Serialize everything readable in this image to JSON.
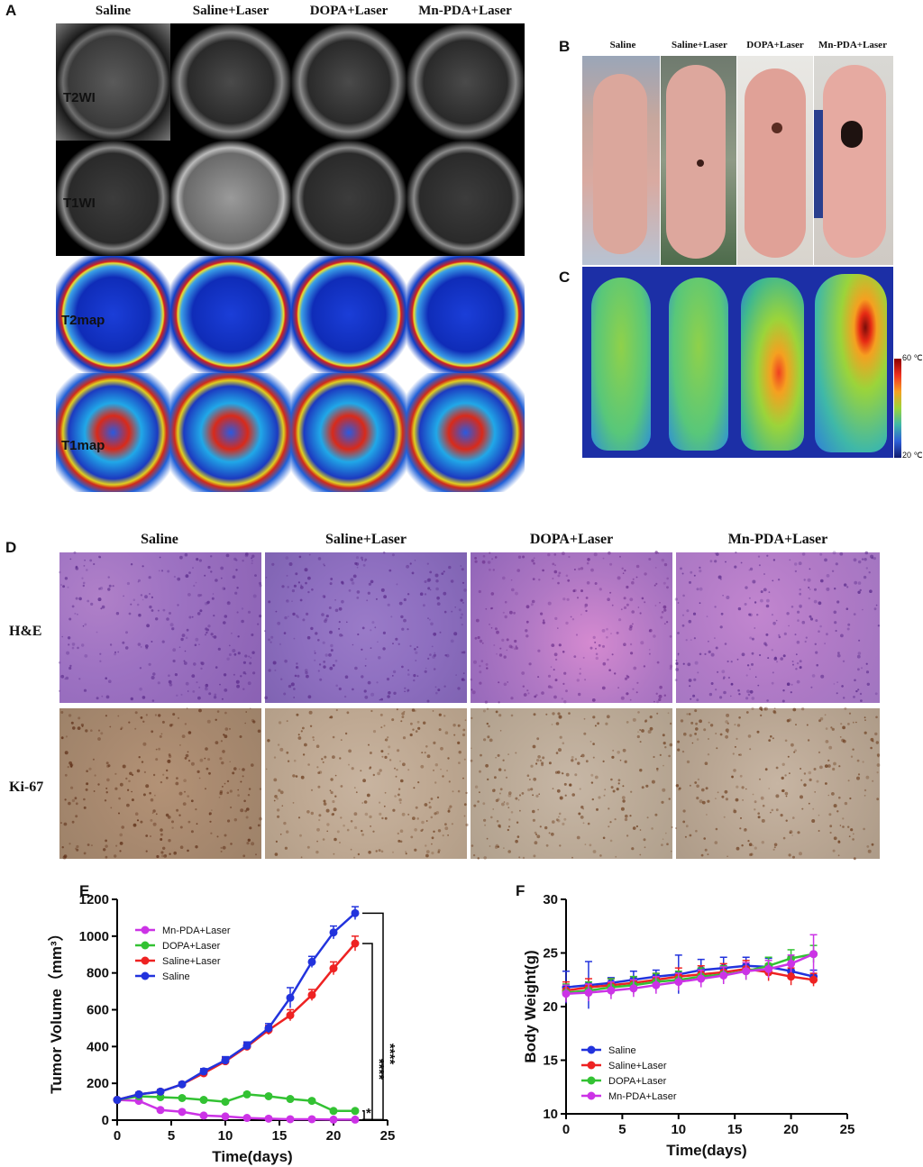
{
  "panel_a": {
    "letter": "A",
    "columns": [
      "Saline",
      "Saline+Laser",
      "DOPA+Laser",
      "Mn-PDA+Laser"
    ],
    "rows": [
      "T2WI",
      "T1WI",
      "T2map",
      "T1map"
    ]
  },
  "panel_b": {
    "letter": "B",
    "columns": [
      "Saline",
      "Saline+Laser",
      "DOPA+Laser",
      "Mn-PDA+Laser"
    ]
  },
  "panel_c": {
    "letter": "C",
    "colorbar_max": "60 ℃",
    "colorbar_min": "20 ℃"
  },
  "panel_d": {
    "letter": "D",
    "columns": [
      "Saline",
      "Saline+Laser",
      "DOPA+Laser",
      "Mn-PDA+Laser"
    ],
    "rows": [
      "H&E",
      "Ki-67"
    ]
  },
  "chart_data": [
    {
      "panel": "E",
      "type": "line",
      "xlabel": "Time(days)",
      "ylabel": "Tumor Volume（mm³）",
      "xlim": [
        0,
        25
      ],
      "ylim": [
        0,
        1200
      ],
      "xticks": [
        0,
        5,
        10,
        15,
        20,
        25
      ],
      "yticks": [
        0,
        200,
        400,
        600,
        800,
        1000,
        1200
      ],
      "legend_position": "top-left",
      "significance": [
        "****",
        "****",
        "*"
      ],
      "series": [
        {
          "name": "Mn-PDA+Laser",
          "color": "#cc33e6",
          "x": [
            0,
            2,
            4,
            6,
            8,
            10,
            12,
            14,
            16,
            18,
            20,
            22
          ],
          "y": [
            110,
            105,
            55,
            45,
            25,
            20,
            12,
            8,
            5,
            5,
            3,
            3
          ],
          "err": [
            8,
            8,
            6,
            5,
            4,
            4,
            3,
            3,
            2,
            2,
            2,
            2
          ]
        },
        {
          "name": "DOPA+Laser",
          "color": "#33c233",
          "x": [
            0,
            2,
            4,
            6,
            8,
            10,
            12,
            14,
            16,
            18,
            20,
            22
          ],
          "y": [
            110,
            130,
            125,
            120,
            110,
            100,
            140,
            130,
            115,
            105,
            50,
            50
          ],
          "err": [
            8,
            10,
            8,
            8,
            8,
            8,
            10,
            8,
            8,
            8,
            6,
            6
          ]
        },
        {
          "name": "Saline+Laser",
          "color": "#ee2222",
          "x": [
            0,
            2,
            4,
            6,
            8,
            10,
            12,
            14,
            16,
            18,
            20,
            22
          ],
          "y": [
            110,
            140,
            155,
            195,
            255,
            320,
            400,
            490,
            570,
            680,
            825,
            960
          ],
          "err": [
            8,
            10,
            10,
            12,
            15,
            20,
            20,
            25,
            30,
            30,
            35,
            40
          ]
        },
        {
          "name": "Saline",
          "color": "#2233dd",
          "x": [
            0,
            2,
            4,
            6,
            8,
            10,
            12,
            14,
            16,
            18,
            20,
            22
          ],
          "y": [
            110,
            140,
            155,
            195,
            265,
            325,
            405,
            500,
            665,
            860,
            1020,
            1125
          ],
          "err": [
            8,
            10,
            10,
            12,
            15,
            20,
            20,
            25,
            55,
            30,
            35,
            35
          ]
        }
      ]
    },
    {
      "panel": "F",
      "type": "line",
      "xlabel": "Time(days)",
      "ylabel": "Body Weight(g)",
      "xlim": [
        0,
        25
      ],
      "ylim": [
        10,
        30
      ],
      "xticks": [
        0,
        5,
        10,
        15,
        20,
        25
      ],
      "yticks": [
        10,
        15,
        20,
        25,
        30
      ],
      "legend_position": "bottom-left",
      "series": [
        {
          "name": "Saline",
          "color": "#2233dd",
          "x": [
            0,
            2,
            4,
            6,
            8,
            10,
            12,
            14,
            16,
            18,
            20,
            22
          ],
          "y": [
            21.8,
            22.0,
            22.2,
            22.5,
            22.8,
            23.0,
            23.4,
            23.6,
            23.8,
            23.7,
            23.3,
            22.8
          ],
          "err": [
            1.5,
            2.2,
            0.5,
            0.8,
            0.6,
            1.8,
            1.0,
            1.0,
            0.8,
            0.8,
            0.8,
            0.6
          ]
        },
        {
          "name": "Saline+Laser",
          "color": "#ee2222",
          "x": [
            0,
            2,
            4,
            6,
            8,
            10,
            12,
            14,
            16,
            18,
            20,
            22
          ],
          "y": [
            21.5,
            21.8,
            22.0,
            22.2,
            22.5,
            22.8,
            23.0,
            23.2,
            23.5,
            23.2,
            22.8,
            22.5
          ],
          "err": [
            0.8,
            0.8,
            0.6,
            0.6,
            0.6,
            0.8,
            0.8,
            0.8,
            0.8,
            0.8,
            0.8,
            0.6
          ]
        },
        {
          "name": "DOPA+Laser",
          "color": "#33c233",
          "x": [
            0,
            2,
            4,
            6,
            8,
            10,
            12,
            14,
            16,
            18,
            20,
            22
          ],
          "y": [
            21.3,
            21.5,
            21.8,
            22.0,
            22.3,
            22.5,
            22.8,
            23.0,
            23.3,
            23.8,
            24.5,
            24.9
          ],
          "err": [
            0.8,
            0.8,
            0.8,
            0.8,
            0.8,
            0.8,
            0.8,
            0.8,
            0.8,
            0.8,
            0.8,
            0.8
          ]
        },
        {
          "name": "Mn-PDA+Laser",
          "color": "#cc33e6",
          "x": [
            0,
            2,
            4,
            6,
            8,
            10,
            12,
            14,
            16,
            18,
            20,
            22
          ],
          "y": [
            21.2,
            21.3,
            21.5,
            21.7,
            22.0,
            22.3,
            22.6,
            22.9,
            23.3,
            23.5,
            24.0,
            24.9
          ],
          "err": [
            0.8,
            0.8,
            0.8,
            0.8,
            0.8,
            0.8,
            0.8,
            0.8,
            0.8,
            0.8,
            0.8,
            1.8
          ]
        }
      ]
    }
  ]
}
